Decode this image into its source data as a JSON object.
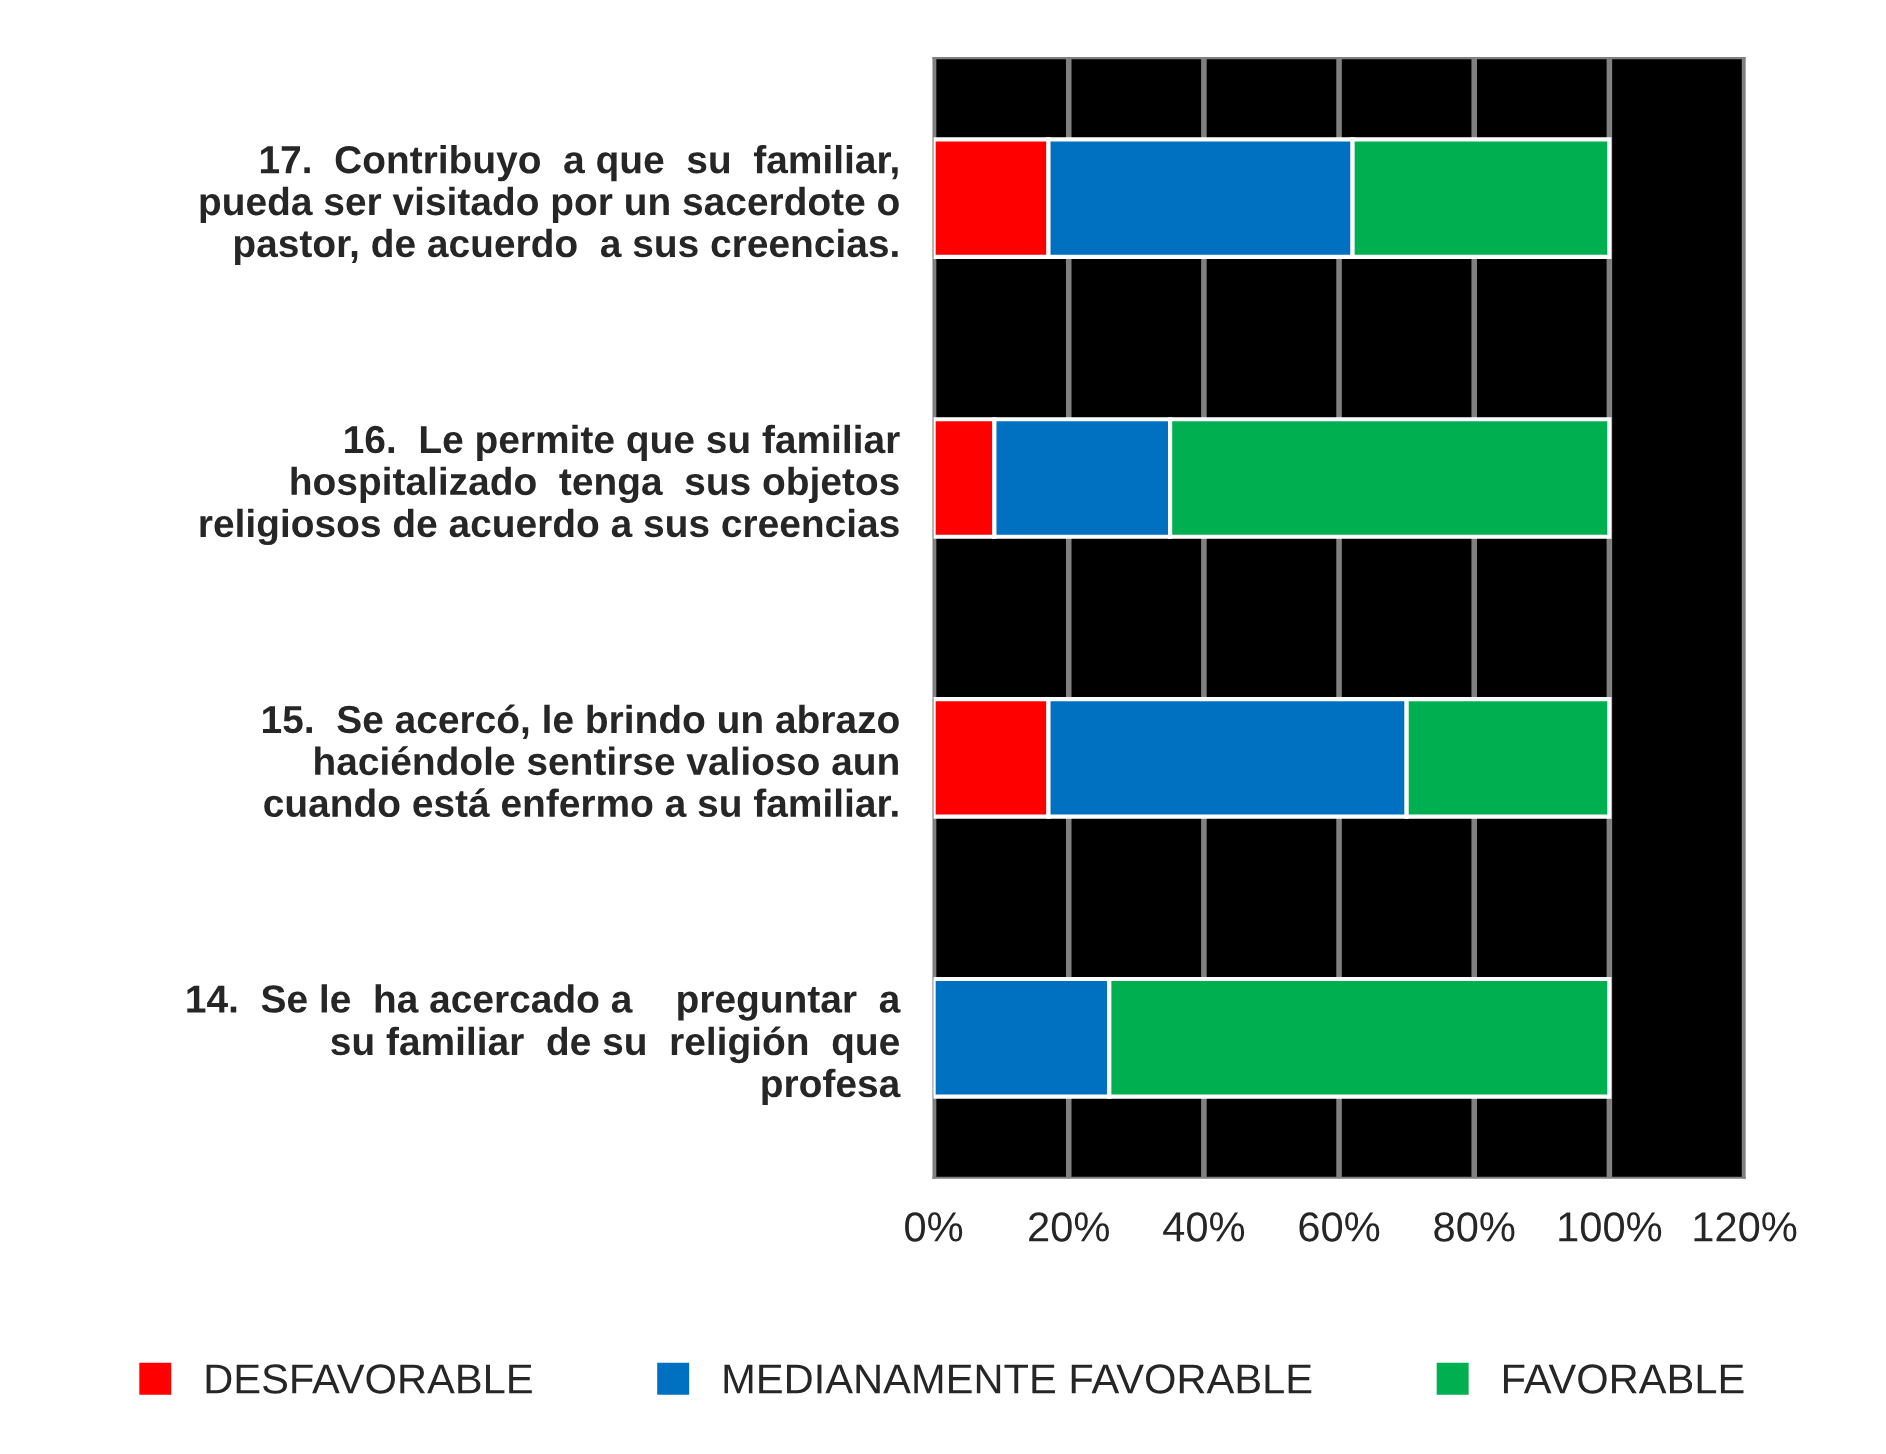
{
  "chart_data": {
    "type": "bar",
    "orientation": "horizontal",
    "stacked": true,
    "categories": [
      "17.  Contribuyo  a que  su  familiar,\npueda ser visitado por un sacerdote o\npastor, de acuerdo  a sus creencias.",
      "16.  Le permite que su familiar\nhospitalizado  tenga  sus objetos\nreligiosos de acuerdo a sus creencias",
      "15.  Se acercó, le brindo un abrazo\nhaciéndole sentirse valioso aun\ncuando está enfermo a su familiar.",
      "14.  Se le  ha acercado a    preguntar  a\nsu familiar  de su  religión  que\nprofesa"
    ],
    "series": [
      {
        "name": "DESFAVORABLE",
        "color": "#ff0000",
        "values": [
          0.17,
          0.09,
          0.17,
          0
        ]
      },
      {
        "name": "MEDIANAMENTE FAVORABLE",
        "color": "#0070c0",
        "values": [
          0.45,
          0.26,
          0.53,
          0.26
        ]
      },
      {
        "name": "FAVORABLE",
        "color": "#00b050",
        "values": [
          0.38,
          0.65,
          0.3,
          0.74
        ]
      }
    ],
    "xlim": [
      0,
      1.2
    ],
    "xticks": [
      {
        "value": 0,
        "label": "0%"
      },
      {
        "value": 0.2,
        "label": "20%"
      },
      {
        "value": 0.4,
        "label": "40%"
      },
      {
        "value": 0.6,
        "label": "60%"
      },
      {
        "value": 0.8,
        "label": "80%"
      },
      {
        "value": 1.0,
        "label": "100%"
      },
      {
        "value": 1.2,
        "label": "120%"
      }
    ],
    "grid": "x",
    "legend": "bottom"
  }
}
